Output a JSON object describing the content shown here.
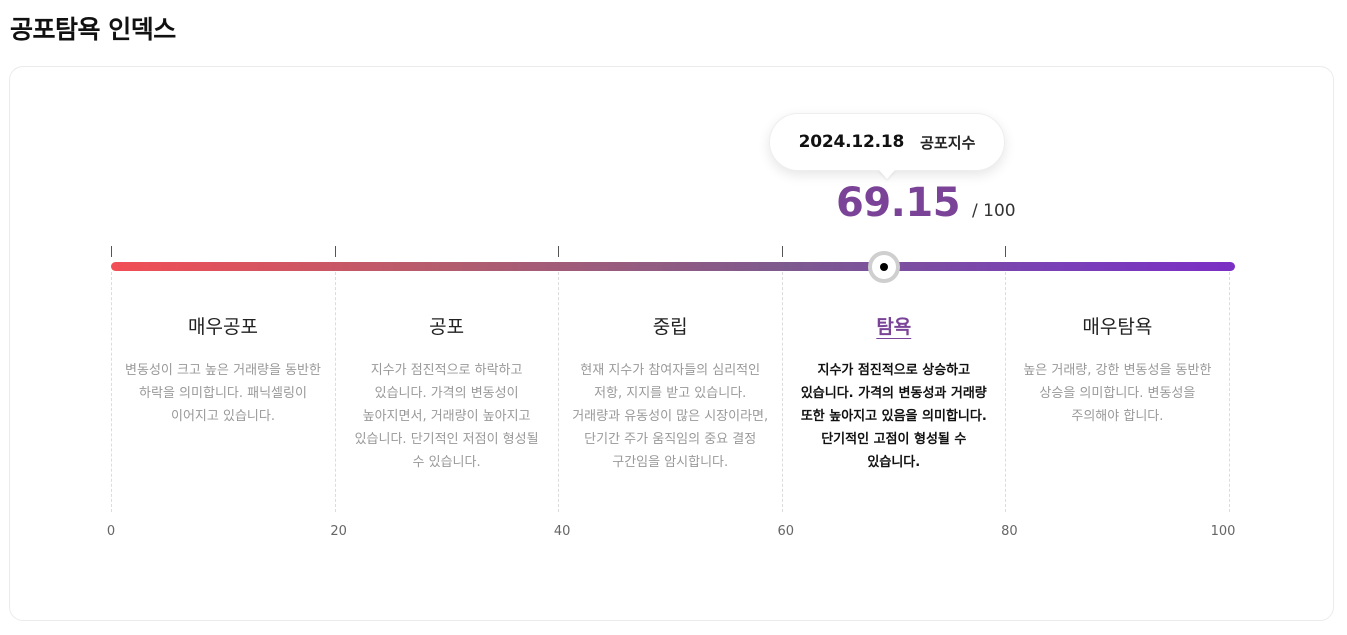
{
  "page": {
    "title": "공포탐욕 인덱스"
  },
  "tooltip": {
    "date": "2024.12.18",
    "label": "공포지수"
  },
  "score": {
    "value": "69.15",
    "max_text": "/ 100",
    "numeric": 69.15,
    "scale_max": 100
  },
  "gauge": {
    "colors": {
      "start": "#f24e55",
      "end": "#7b2fc4",
      "accent": "#7b4397"
    }
  },
  "zones": [
    {
      "label": "매우공포",
      "description": "변동성이 크고 높은 거래량을 동반한 하락을 의미합니다. 패닉셀링이 이어지고 있습니다.",
      "active": false
    },
    {
      "label": "공포",
      "description": "지수가 점진적으로 하락하고 있습니다. 가격의 변동성이 높아지면서, 거래량이 높아지고 있습니다. 단기적인 저점이 형성될 수 있습니다.",
      "active": false
    },
    {
      "label": "중립",
      "description": "현재 지수가 참여자들의 심리적인 저항, 지지를 받고 있습니다. 거래량과 유동성이 많은 시장이라면, 단기간 주가 움직임의 중요 결정 구간임을 암시합니다.",
      "active": false
    },
    {
      "label": "탐욕",
      "description": "지수가 점진적으로 상승하고 있습니다. 가격의 변동성과 거래량 또한 높아지고 있음을 의미합니다. 단기적인 고점이 형성될 수 있습니다.",
      "active": true
    },
    {
      "label": "매우탐욕",
      "description": "높은 거래량, 강한 변동성을 동반한 상승을 의미합니다. 변동성을 주의해야 합니다.",
      "active": false
    }
  ],
  "axis": {
    "ticks": [
      "0",
      "20",
      "40",
      "60",
      "80",
      "100"
    ]
  }
}
